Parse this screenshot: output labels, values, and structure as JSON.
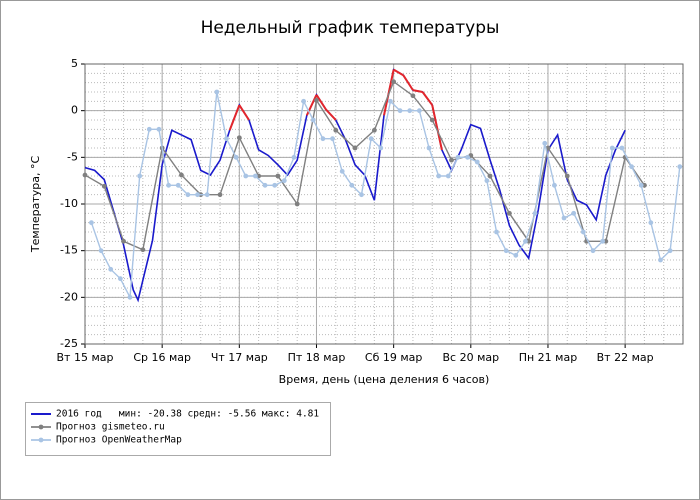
{
  "chart_data": {
    "type": "line",
    "title": "Недельный график температуры",
    "y_label": "Температура, °C",
    "x_label": "Время, день (цена деления 6 часов)",
    "xlim": [
      0,
      186
    ],
    "ylim": [
      -25,
      5
    ],
    "xticks": [
      {
        "value": 0,
        "label": "Вт 15 мар"
      },
      {
        "value": 24,
        "label": "Ср 16 мар"
      },
      {
        "value": 48,
        "label": "Чт 17 мар"
      },
      {
        "value": 72,
        "label": "Пт 18 мар"
      },
      {
        "value": 96,
        "label": "Сб 19 мар"
      },
      {
        "value": 120,
        "label": "Вс 20 мар"
      },
      {
        "value": 144,
        "label": "Пн 21 мар"
      },
      {
        "value": 168,
        "label": "Вт 22 мар"
      }
    ],
    "yticks": [
      -25,
      -20,
      -15,
      -10,
      -5,
      0,
      5
    ],
    "minor_step": {
      "x": 6,
      "y": 1
    },
    "grid": true,
    "legend": "bottom-left",
    "highlight": {
      "above": 0,
      "color": "#e3262b"
    },
    "series": [
      {
        "name": "2016 год   мин: -20.38 средн: -5.56 макс: 4.81",
        "color": "#1a1acc",
        "markers": false,
        "width": 1.6,
        "x": [
          0,
          3,
          6,
          9,
          12,
          15,
          16.5,
          21,
          24,
          27,
          30,
          33,
          36,
          39,
          42,
          45,
          48,
          51,
          54,
          57,
          60,
          63,
          66,
          69,
          72,
          75,
          78,
          81,
          84,
          87,
          90,
          93,
          96,
          99,
          102,
          105,
          108,
          111,
          114,
          117,
          120,
          123,
          126,
          129,
          132,
          135,
          138,
          141,
          144,
          147,
          150,
          153,
          156,
          159,
          162,
          165,
          168
        ],
        "values": [
          -6.1,
          -6.4,
          -7.4,
          -10.9,
          -14.4,
          -19.2,
          -20.3,
          -13.9,
          -5.8,
          -2.1,
          -2.6,
          -3.1,
          -6.4,
          -6.9,
          -5.3,
          -2.1,
          0.6,
          -1,
          -4.2,
          -4.8,
          -5.8,
          -6.9,
          -5.3,
          -0.5,
          1.7,
          0.1,
          -1,
          -3.1,
          -5.8,
          -6.9,
          -9.6,
          -0.5,
          4.4,
          3.8,
          2.2,
          2,
          0.6,
          -4.2,
          -6.4,
          -4.2,
          -1.5,
          -1.9,
          -5.3,
          -8.5,
          -12.3,
          -14.4,
          -15.8,
          -10.6,
          -4.2,
          -2.6,
          -7.4,
          -9.6,
          -10.1,
          -11.7,
          -6.9,
          -4.2,
          -2.1
        ]
      },
      {
        "name": "Прогноз gismeteo.ru",
        "color": "#808080",
        "markers": true,
        "width": 1.4,
        "x": [
          0,
          6,
          12,
          18,
          24,
          30,
          36,
          42,
          48,
          54,
          60,
          66,
          72,
          78,
          84,
          90,
          96,
          102,
          108,
          114,
          120,
          126,
          132,
          138,
          144,
          150,
          156,
          162,
          168,
          174
        ],
        "values": [
          -6.9,
          -8.1,
          -14,
          -14.9,
          -4,
          -6.9,
          -9,
          -9,
          -2.9,
          -7,
          -7,
          -10,
          1.1,
          -2.1,
          -4,
          -2.1,
          3.1,
          1.6,
          -1,
          -5.3,
          -4.8,
          -7,
          -11,
          -14,
          -4,
          -7,
          -14,
          -14,
          -5,
          -8
        ]
      },
      {
        "name": "Прогноз OpenWeatherMap",
        "color": "#a9c4e4",
        "markers": true,
        "width": 1.4,
        "x": [
          2,
          5,
          8,
          11,
          14,
          17,
          20,
          23,
          26,
          29,
          32,
          35,
          38,
          41,
          44,
          47,
          50,
          53,
          56,
          59,
          62,
          65,
          68,
          71,
          74,
          77,
          80,
          83,
          86,
          89,
          92,
          95,
          98,
          101,
          104,
          107,
          110,
          113,
          116,
          119,
          122,
          125,
          128,
          131,
          134,
          137,
          140,
          143,
          146,
          149,
          152,
          155,
          158,
          161,
          164,
          167,
          170,
          173,
          176,
          179,
          182,
          185
        ],
        "values": [
          -12,
          -15,
          -17,
          -18,
          -20,
          -7,
          -2,
          -2,
          -8,
          -8,
          -9,
          -9,
          -9,
          2,
          -3,
          -5,
          -7,
          -7,
          -8,
          -8,
          -7.5,
          -5,
          1,
          -1,
          -3,
          -3,
          -6.5,
          -8,
          -9,
          -3,
          -4,
          1,
          0,
          0,
          0,
          -4,
          -7,
          -7,
          -5,
          -5,
          -5.5,
          -7.5,
          -13,
          -15,
          -15.5,
          -14,
          -11,
          -3.5,
          -8,
          -11.5,
          -11,
          -13,
          -15,
          -14,
          -4,
          -4,
          -6,
          -8,
          -12,
          -16,
          -15,
          -6
        ]
      }
    ]
  }
}
